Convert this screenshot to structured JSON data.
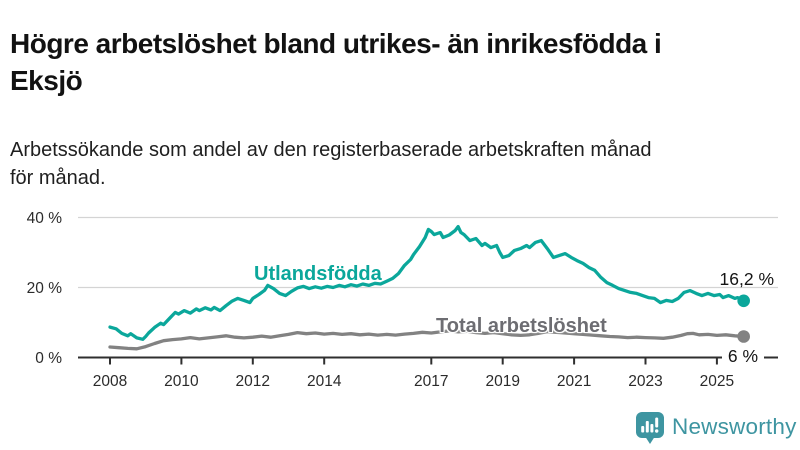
{
  "header": {
    "title_line1": "Högre arbetslöshet bland utrikes- än inrikesfödda i",
    "title_line2": "Eksjö",
    "subtitle_line1": "Arbetssökande som andel av den registerbaserade arbetskraften månad",
    "subtitle_line2": "för månad."
  },
  "branding": {
    "logo_text": "Newsworthy",
    "logo_color": "#3e95a1"
  },
  "colors": {
    "teal_line": "#0ba79b",
    "gray_line": "#828282",
    "gray_label": "#6d6d72",
    "gridline": "#d4d4d4",
    "axis_line": "#2f2f2f",
    "axis_text": "#2b2b2b"
  },
  "chart_data": {
    "type": "line",
    "title": "Högre arbetslöshet bland utrikes- än inrikesfödda i Eksjö",
    "subtitle": "Arbetssökande som andel av den registerbaserade arbetskraften månad för månad.",
    "ylabel": "",
    "xlabel": "",
    "ylim": [
      0,
      42
    ],
    "yticks": [
      {
        "value": 0,
        "label": "0 %"
      },
      {
        "value": 20,
        "label": "20 %"
      },
      {
        "value": 40,
        "label": "40 %"
      }
    ],
    "xticks": [
      2008,
      2010,
      2012,
      2014,
      2017,
      2019,
      2021,
      2023,
      2025
    ],
    "grid": "horizontal",
    "legend_position": "inline-labels",
    "series": [
      {
        "name": "Utlandsfödda",
        "color": "#0ba79b",
        "end_label": "16,2 %",
        "end_value": 16.2,
        "points": [
          [
            2008.0,
            8.7
          ],
          [
            2008.17,
            8.2
          ],
          [
            2008.33,
            6.9
          ],
          [
            2008.5,
            6.2
          ],
          [
            2008.58,
            6.8
          ],
          [
            2008.75,
            5.6
          ],
          [
            2008.92,
            5.2
          ],
          [
            2009.0,
            6.0
          ],
          [
            2009.08,
            7.0
          ],
          [
            2009.25,
            8.6
          ],
          [
            2009.42,
            9.8
          ],
          [
            2009.5,
            9.4
          ],
          [
            2009.67,
            11.2
          ],
          [
            2009.83,
            12.9
          ],
          [
            2009.92,
            12.4
          ],
          [
            2010.08,
            13.4
          ],
          [
            2010.25,
            12.7
          ],
          [
            2010.42,
            13.9
          ],
          [
            2010.5,
            13.4
          ],
          [
            2010.67,
            14.2
          ],
          [
            2010.83,
            13.6
          ],
          [
            2010.92,
            14.3
          ],
          [
            2011.08,
            13.4
          ],
          [
            2011.25,
            14.8
          ],
          [
            2011.42,
            16.1
          ],
          [
            2011.58,
            16.9
          ],
          [
            2011.75,
            16.3
          ],
          [
            2011.92,
            15.7
          ],
          [
            2012.0,
            16.9
          ],
          [
            2012.17,
            18.0
          ],
          [
            2012.33,
            19.2
          ],
          [
            2012.42,
            20.6
          ],
          [
            2012.58,
            19.7
          ],
          [
            2012.75,
            18.3
          ],
          [
            2012.92,
            17.7
          ],
          [
            2013.08,
            18.9
          ],
          [
            2013.25,
            19.9
          ],
          [
            2013.42,
            20.3
          ],
          [
            2013.58,
            19.7
          ],
          [
            2013.75,
            20.2
          ],
          [
            2013.92,
            19.8
          ],
          [
            2014.08,
            20.3
          ],
          [
            2014.25,
            20.0
          ],
          [
            2014.42,
            20.6
          ],
          [
            2014.58,
            20.2
          ],
          [
            2014.75,
            20.8
          ],
          [
            2014.92,
            20.4
          ],
          [
            2015.08,
            21.0
          ],
          [
            2015.25,
            20.6
          ],
          [
            2015.42,
            21.2
          ],
          [
            2015.58,
            21.0
          ],
          [
            2015.75,
            21.8
          ],
          [
            2015.92,
            22.6
          ],
          [
            2016.08,
            24.0
          ],
          [
            2016.25,
            26.3
          ],
          [
            2016.42,
            28.0
          ],
          [
            2016.5,
            29.4
          ],
          [
            2016.67,
            31.7
          ],
          [
            2016.83,
            34.3
          ],
          [
            2016.92,
            36.6
          ],
          [
            2017.0,
            36.0
          ],
          [
            2017.08,
            35.1
          ],
          [
            2017.25,
            35.7
          ],
          [
            2017.33,
            34.3
          ],
          [
            2017.5,
            35.0
          ],
          [
            2017.67,
            36.3
          ],
          [
            2017.75,
            37.4
          ],
          [
            2017.83,
            35.7
          ],
          [
            2017.92,
            35.1
          ],
          [
            2018.08,
            33.4
          ],
          [
            2018.25,
            34.0
          ],
          [
            2018.42,
            32.0
          ],
          [
            2018.5,
            32.6
          ],
          [
            2018.67,
            31.4
          ],
          [
            2018.83,
            32.0
          ],
          [
            2018.92,
            30.0
          ],
          [
            2019.0,
            28.6
          ],
          [
            2019.17,
            29.1
          ],
          [
            2019.33,
            30.6
          ],
          [
            2019.5,
            31.1
          ],
          [
            2019.67,
            32.0
          ],
          [
            2019.75,
            31.4
          ],
          [
            2019.92,
            32.9
          ],
          [
            2020.08,
            33.4
          ],
          [
            2020.25,
            31.1
          ],
          [
            2020.42,
            28.6
          ],
          [
            2020.58,
            29.1
          ],
          [
            2020.75,
            29.7
          ],
          [
            2020.92,
            28.6
          ],
          [
            2021.08,
            27.7
          ],
          [
            2021.25,
            26.9
          ],
          [
            2021.42,
            25.7
          ],
          [
            2021.58,
            24.9
          ],
          [
            2021.75,
            22.9
          ],
          [
            2021.92,
            21.4
          ],
          [
            2022.08,
            20.6
          ],
          [
            2022.25,
            19.7
          ],
          [
            2022.42,
            19.1
          ],
          [
            2022.58,
            18.6
          ],
          [
            2022.75,
            18.3
          ],
          [
            2022.92,
            17.7
          ],
          [
            2023.08,
            17.1
          ],
          [
            2023.25,
            16.9
          ],
          [
            2023.42,
            15.7
          ],
          [
            2023.58,
            16.3
          ],
          [
            2023.75,
            16.0
          ],
          [
            2023.92,
            16.9
          ],
          [
            2024.08,
            18.6
          ],
          [
            2024.25,
            19.1
          ],
          [
            2024.42,
            18.3
          ],
          [
            2024.58,
            17.7
          ],
          [
            2024.75,
            18.3
          ],
          [
            2024.92,
            17.7
          ],
          [
            2025.08,
            18.0
          ],
          [
            2025.17,
            17.1
          ],
          [
            2025.33,
            17.7
          ],
          [
            2025.5,
            16.9
          ],
          [
            2025.58,
            17.1
          ],
          [
            2025.67,
            16.6
          ],
          [
            2025.75,
            16.2
          ]
        ]
      },
      {
        "name": "Total arbetslöshet",
        "color": "#828282",
        "end_label": "6 %",
        "end_value": 6.0,
        "points": [
          [
            2008.0,
            3.0
          ],
          [
            2008.25,
            2.8
          ],
          [
            2008.5,
            2.6
          ],
          [
            2008.75,
            2.5
          ],
          [
            2009.0,
            3.1
          ],
          [
            2009.25,
            4.0
          ],
          [
            2009.5,
            4.8
          ],
          [
            2009.75,
            5.1
          ],
          [
            2010.0,
            5.3
          ],
          [
            2010.25,
            5.7
          ],
          [
            2010.5,
            5.3
          ],
          [
            2010.75,
            5.6
          ],
          [
            2011.0,
            5.9
          ],
          [
            2011.25,
            6.2
          ],
          [
            2011.5,
            5.8
          ],
          [
            2011.75,
            5.6
          ],
          [
            2012.0,
            5.8
          ],
          [
            2012.25,
            6.1
          ],
          [
            2012.5,
            5.8
          ],
          [
            2012.75,
            6.2
          ],
          [
            2013.0,
            6.6
          ],
          [
            2013.25,
            7.1
          ],
          [
            2013.5,
            6.8
          ],
          [
            2013.75,
            7.0
          ],
          [
            2014.0,
            6.7
          ],
          [
            2014.25,
            6.9
          ],
          [
            2014.5,
            6.6
          ],
          [
            2014.75,
            6.8
          ],
          [
            2015.0,
            6.5
          ],
          [
            2015.25,
            6.7
          ],
          [
            2015.5,
            6.4
          ],
          [
            2015.75,
            6.6
          ],
          [
            2016.0,
            6.4
          ],
          [
            2016.25,
            6.7
          ],
          [
            2016.5,
            6.9
          ],
          [
            2016.75,
            7.2
          ],
          [
            2017.0,
            7.0
          ],
          [
            2017.25,
            7.3
          ],
          [
            2017.5,
            7.6
          ],
          [
            2017.75,
            7.3
          ],
          [
            2018.0,
            7.5
          ],
          [
            2018.25,
            7.1
          ],
          [
            2018.5,
            6.9
          ],
          [
            2018.75,
            7.1
          ],
          [
            2019.0,
            6.8
          ],
          [
            2019.25,
            6.5
          ],
          [
            2019.5,
            6.3
          ],
          [
            2019.75,
            6.5
          ],
          [
            2020.0,
            6.9
          ],
          [
            2020.25,
            7.4
          ],
          [
            2020.5,
            7.2
          ],
          [
            2020.75,
            7.0
          ],
          [
            2021.0,
            6.8
          ],
          [
            2021.25,
            6.6
          ],
          [
            2021.5,
            6.4
          ],
          [
            2021.75,
            6.2
          ],
          [
            2022.0,
            6.0
          ],
          [
            2022.25,
            5.9
          ],
          [
            2022.5,
            5.7
          ],
          [
            2022.75,
            5.8
          ],
          [
            2023.0,
            5.7
          ],
          [
            2023.25,
            5.6
          ],
          [
            2023.5,
            5.5
          ],
          [
            2023.75,
            5.8
          ],
          [
            2024.0,
            6.3
          ],
          [
            2024.17,
            6.8
          ],
          [
            2024.33,
            6.9
          ],
          [
            2024.5,
            6.5
          ],
          [
            2024.75,
            6.6
          ],
          [
            2025.0,
            6.3
          ],
          [
            2025.25,
            6.5
          ],
          [
            2025.5,
            6.2
          ],
          [
            2025.75,
            6.0
          ]
        ]
      }
    ]
  }
}
